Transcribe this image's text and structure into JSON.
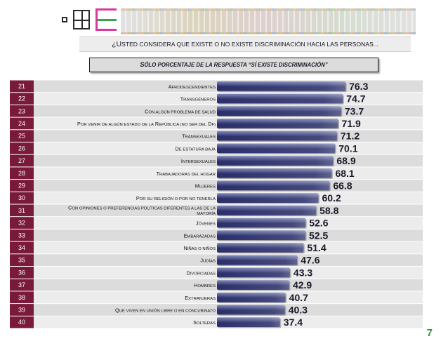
{
  "question": {
    "prefix": "¿U",
    "rest": "STED CONSIDERA QUE EXISTE O NO EXISTE DISCRIMINACIÓN HACIA LAS PERSONAS..."
  },
  "subtitle": {
    "prefix": "S",
    "rest": "ÓLO PORCENTAJE  DE LA RESPUESTA “SÍ EXISTE DISCRIMINACIÓN”"
  },
  "page_number": "7",
  "colors": {
    "row_number_bg": "#7a1a3a",
    "row_odd": "#dcdcdc",
    "row_even": "#ececec",
    "bar_dark": "#2b2f6a",
    "bar_light": "#8088b8",
    "highlight_label": "#c00000",
    "page_number": "#2e9a3a"
  },
  "chart_data": {
    "type": "bar",
    "orientation": "horizontal",
    "row_numbers": [
      "21",
      "22",
      "23",
      "24",
      "25",
      "26",
      "27",
      "28",
      "29",
      "30",
      "31",
      "32",
      "33",
      "34",
      "35",
      "36",
      "37",
      "38",
      "39",
      "40"
    ],
    "categories": [
      "Afrodescendientes",
      "Transgéneros",
      "Con algún problema de salud",
      "Por venir de algún estado de la República (no ser del DF)",
      "Transexuales",
      "De estatura baja",
      "Intersexuales",
      "Trabajadoras del hogar",
      "Mujeres",
      "Por su religión o por no tenerla",
      "Con opiniones o preferencias políticas diferentes a las de la mayoría",
      "Jóvenes",
      "Embarazadas",
      "Niñas o niños",
      "Judías",
      "Divorciadas",
      "Hombres",
      "Extranjeras",
      "Que viven en unión libre o en concubinato",
      "Solteras"
    ],
    "values": [
      76.3,
      74.7,
      73.7,
      71.9,
      71.2,
      70.1,
      68.9,
      68.1,
      66.8,
      60.2,
      58.8,
      52.6,
      52.5,
      51.4,
      47.6,
      43.3,
      42.9,
      40.7,
      40.3,
      37.4
    ],
    "value_labels": [
      "76.3",
      "74.7",
      "73.7",
      "71.9",
      "71.2",
      "70.1",
      "68.9",
      "68.1",
      "66.8",
      "60.2",
      "58.8",
      "52.6",
      "52.5",
      "51.4",
      "47.6",
      "43.3",
      "42.9",
      "40.7",
      "40.3",
      "37.4"
    ],
    "highlighted_index": 2,
    "xlim": [
      0,
      100
    ],
    "grid": false,
    "legend": "none"
  }
}
